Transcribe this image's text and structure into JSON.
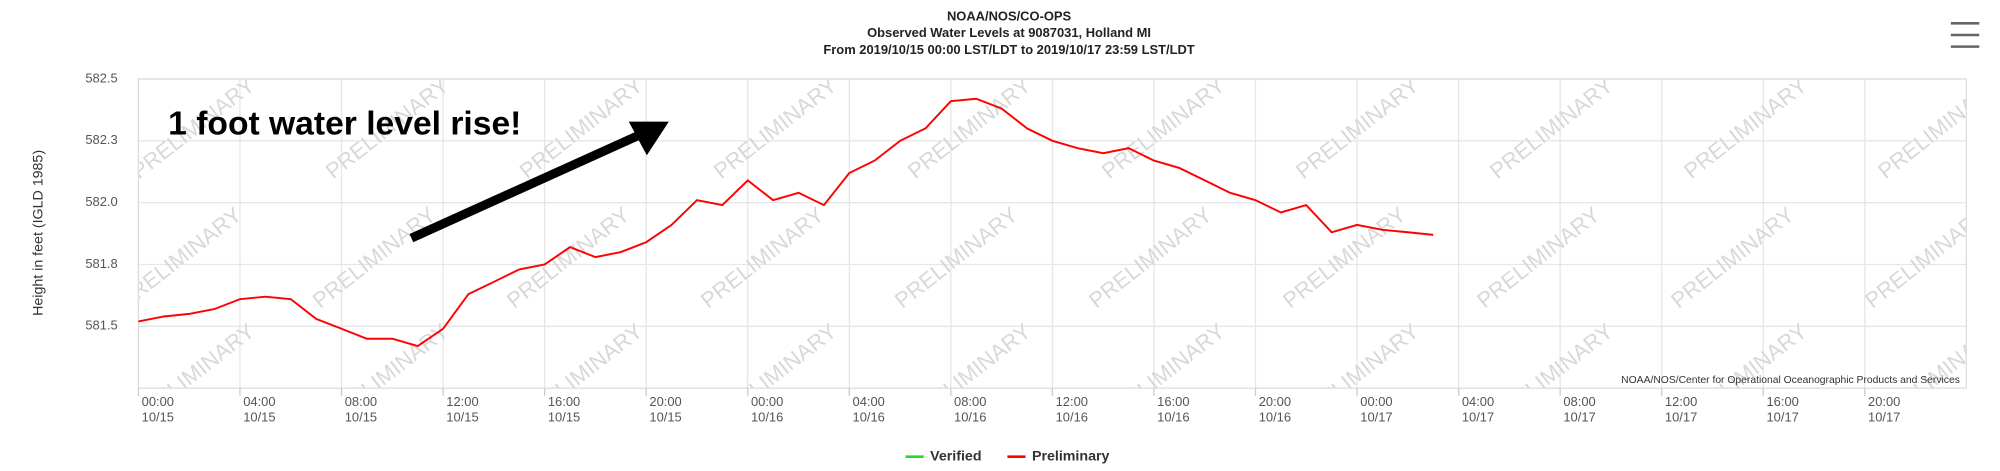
{
  "chart_data": {
    "type": "line",
    "title": [
      "NOAA/NOS/CO-OPS",
      "Observed Water Levels at 9087031, Holland MI",
      "From 2019/10/15 00:00 LST/LDT to 2019/10/17 23:59 LST/LDT"
    ],
    "y_label": "Height in feet (IGLD 1985)",
    "annotation": "1 foot water level rise!",
    "watermark": "PRELIMINARY",
    "credit": "NOAA/NOS/Center for Operational Oceanographic Products and Services",
    "grid": true,
    "legend_position": "bottom",
    "ylim": [
      581.25,
      582.5
    ],
    "yticks": [
      {
        "value": 581.5,
        "label": "581.5"
      },
      {
        "value": 581.75,
        "label": "581.8"
      },
      {
        "value": 582.0,
        "label": "582.0"
      },
      {
        "value": 582.25,
        "label": "582.3"
      },
      {
        "value": 582.5,
        "label": "582.5"
      }
    ],
    "xlim": [
      "2019-10-15 00:00",
      "2019-10-18 00:00"
    ],
    "xticks": [
      {
        "value": "2019-10-15 00:00",
        "label": [
          "00:00",
          "10/15"
        ]
      },
      {
        "value": "2019-10-15 04:00",
        "label": [
          "04:00",
          "10/15"
        ]
      },
      {
        "value": "2019-10-15 08:00",
        "label": [
          "08:00",
          "10/15"
        ]
      },
      {
        "value": "2019-10-15 12:00",
        "label": [
          "12:00",
          "10/15"
        ]
      },
      {
        "value": "2019-10-15 16:00",
        "label": [
          "16:00",
          "10/15"
        ]
      },
      {
        "value": "2019-10-15 20:00",
        "label": [
          "20:00",
          "10/15"
        ]
      },
      {
        "value": "2019-10-16 00:00",
        "label": [
          "00:00",
          "10/16"
        ]
      },
      {
        "value": "2019-10-16 04:00",
        "label": [
          "04:00",
          "10/16"
        ]
      },
      {
        "value": "2019-10-16 08:00",
        "label": [
          "08:00",
          "10/16"
        ]
      },
      {
        "value": "2019-10-16 12:00",
        "label": [
          "12:00",
          "10/16"
        ]
      },
      {
        "value": "2019-10-16 16:00",
        "label": [
          "16:00",
          "10/16"
        ]
      },
      {
        "value": "2019-10-16 20:00",
        "label": [
          "20:00",
          "10/16"
        ]
      },
      {
        "value": "2019-10-17 00:00",
        "label": [
          "00:00",
          "10/17"
        ]
      },
      {
        "value": "2019-10-17 04:00",
        "label": [
          "04:00",
          "10/17"
        ]
      },
      {
        "value": "2019-10-17 08:00",
        "label": [
          "08:00",
          "10/17"
        ]
      },
      {
        "value": "2019-10-17 12:00",
        "label": [
          "12:00",
          "10/17"
        ]
      },
      {
        "value": "2019-10-17 16:00",
        "label": [
          "16:00",
          "10/17"
        ]
      },
      {
        "value": "2019-10-17 20:00",
        "label": [
          "20:00",
          "10/17"
        ]
      }
    ],
    "x": [
      "2019-10-15 00:00",
      "2019-10-15 01:00",
      "2019-10-15 02:00",
      "2019-10-15 03:00",
      "2019-10-15 04:00",
      "2019-10-15 05:00",
      "2019-10-15 06:00",
      "2019-10-15 07:00",
      "2019-10-15 08:00",
      "2019-10-15 09:00",
      "2019-10-15 10:00",
      "2019-10-15 11:00",
      "2019-10-15 12:00",
      "2019-10-15 13:00",
      "2019-10-15 14:00",
      "2019-10-15 15:00",
      "2019-10-15 16:00",
      "2019-10-15 17:00",
      "2019-10-15 18:00",
      "2019-10-15 19:00",
      "2019-10-15 20:00",
      "2019-10-15 21:00",
      "2019-10-15 22:00",
      "2019-10-15 23:00",
      "2019-10-16 00:00",
      "2019-10-16 01:00",
      "2019-10-16 02:00",
      "2019-10-16 03:00",
      "2019-10-16 04:00",
      "2019-10-16 05:00",
      "2019-10-16 06:00",
      "2019-10-16 07:00",
      "2019-10-16 08:00",
      "2019-10-16 09:00",
      "2019-10-16 10:00",
      "2019-10-16 11:00",
      "2019-10-16 12:00",
      "2019-10-16 13:00",
      "2019-10-16 14:00",
      "2019-10-16 15:00",
      "2019-10-16 16:00",
      "2019-10-16 17:00",
      "2019-10-16 18:00",
      "2019-10-16 19:00",
      "2019-10-16 20:00",
      "2019-10-16 21:00",
      "2019-10-16 22:00",
      "2019-10-16 23:00",
      "2019-10-17 00:00",
      "2019-10-17 01:00",
      "2019-10-17 02:00",
      "2019-10-17 03:00"
    ],
    "series": [
      {
        "name": "Verified",
        "color": "#22dd22",
        "values": [
          null,
          null,
          null,
          null,
          null,
          null,
          null,
          null,
          null,
          null,
          null,
          null,
          null,
          null,
          null,
          null,
          null,
          null,
          null,
          null,
          null,
          null,
          null,
          null,
          null,
          null,
          null,
          null,
          null,
          null,
          null,
          null,
          null,
          null,
          null,
          null,
          null,
          null,
          null,
          null,
          null,
          null,
          null,
          null,
          null,
          null,
          null,
          null,
          null,
          null,
          null,
          null
        ]
      },
      {
        "name": "Preliminary",
        "color": "#ff0000",
        "values": [
          581.52,
          581.54,
          581.55,
          581.57,
          581.61,
          581.62,
          581.61,
          581.53,
          581.49,
          581.45,
          581.45,
          581.42,
          581.49,
          581.63,
          581.68,
          581.73,
          581.75,
          581.82,
          581.78,
          581.8,
          581.84,
          581.91,
          582.01,
          581.99,
          582.09,
          582.01,
          582.04,
          581.99,
          582.12,
          582.17,
          582.25,
          582.3,
          582.41,
          582.42,
          582.38,
          582.3,
          582.25,
          582.22,
          582.2,
          582.22,
          582.17,
          582.14,
          582.09,
          582.04,
          582.01,
          581.96,
          581.99,
          581.88,
          581.91,
          581.89,
          581.88,
          581.87
        ]
      }
    ]
  }
}
